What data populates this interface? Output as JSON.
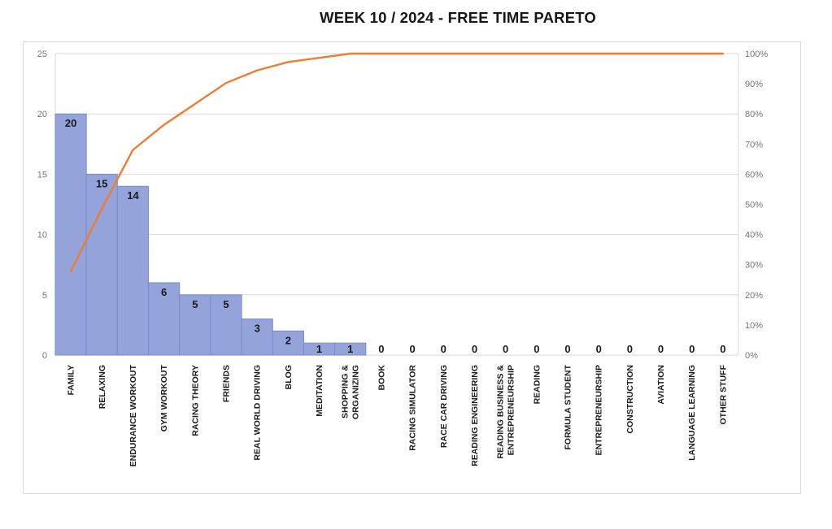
{
  "title": "WEEK 10 / 2024  - FREE TIME PARETO",
  "chart_data": {
    "type": "bar",
    "subtype": "pareto",
    "title": "WEEK 10 / 2024  - FREE TIME PARETO",
    "categories": [
      "FAMILY",
      "RELAXING",
      "ENDURANCE WORKOUT",
      "GYM WORKOUT",
      "RACING THEORY",
      "FRIENDS",
      "REAL WORLD DRIVING",
      "BLOG",
      "MEDITATION",
      "SHOPPING &\nORGANIZING",
      "BOOK",
      "RACING SIMULATOR",
      "RACE CAR DRIVING",
      "READING ENGINEERING",
      "READING BUSINESS &\nENTREPRENEURSHIP",
      "READING",
      "FORMULA STUDENT",
      "ENTREPRENEURSHIP",
      "CONSTRUCTION",
      "AVIATION",
      "LANGUAGE LEARNING",
      "OTHER STUFF"
    ],
    "series": [
      {
        "name": "hours",
        "kind": "bar",
        "axis": "left",
        "values": [
          20,
          15,
          14,
          6,
          5,
          5,
          3,
          2,
          1,
          1,
          0,
          0,
          0,
          0,
          0,
          0,
          0,
          0,
          0,
          0,
          0,
          0
        ],
        "data_labels": [
          "20",
          "15",
          "14",
          "6",
          "5",
          "5",
          "3",
          "2",
          "1",
          "1",
          "0",
          "0",
          "0",
          "0",
          "0",
          "0",
          "0",
          "0",
          "0",
          "0",
          "0",
          "0"
        ]
      },
      {
        "name": "cumulative-percent",
        "kind": "line",
        "axis": "right",
        "values": [
          27.78,
          48.61,
          68.06,
          76.39,
          83.33,
          90.28,
          94.44,
          97.22,
          98.61,
          100,
          100,
          100,
          100,
          100,
          100,
          100,
          100,
          100,
          100,
          100,
          100,
          100
        ]
      }
    ],
    "left_axis": {
      "min": 0,
      "max": 25,
      "tick_labels": [
        "0",
        "5",
        "10",
        "15",
        "20",
        "25"
      ],
      "tick_values": [
        0,
        5,
        10,
        15,
        20,
        25
      ]
    },
    "right_axis": {
      "min": 0,
      "max": 100,
      "tick_labels": [
        "0%",
        "10%",
        "20%",
        "30%",
        "40%",
        "50%",
        "60%",
        "70%",
        "80%",
        "90%",
        "100%"
      ],
      "tick_values": [
        0,
        10,
        20,
        30,
        40,
        50,
        60,
        70,
        80,
        90,
        100
      ]
    },
    "gridlines": {
      "shown": true,
      "at_left_values": [
        0,
        5,
        10,
        15,
        20,
        25
      ]
    },
    "legend": {
      "shown": false
    },
    "colors": {
      "bar_fill": "#94a3d9",
      "bar_border": "#7a8cc8",
      "line": "#ed7d31",
      "grid": "#d9d9d9",
      "plot_border": "#d9d9d9",
      "chart_border": "#d9d9d9",
      "axis_text": "#747474",
      "label_text": "#1a1a1a",
      "title_text": "#171717",
      "background": "#ffffff"
    }
  }
}
